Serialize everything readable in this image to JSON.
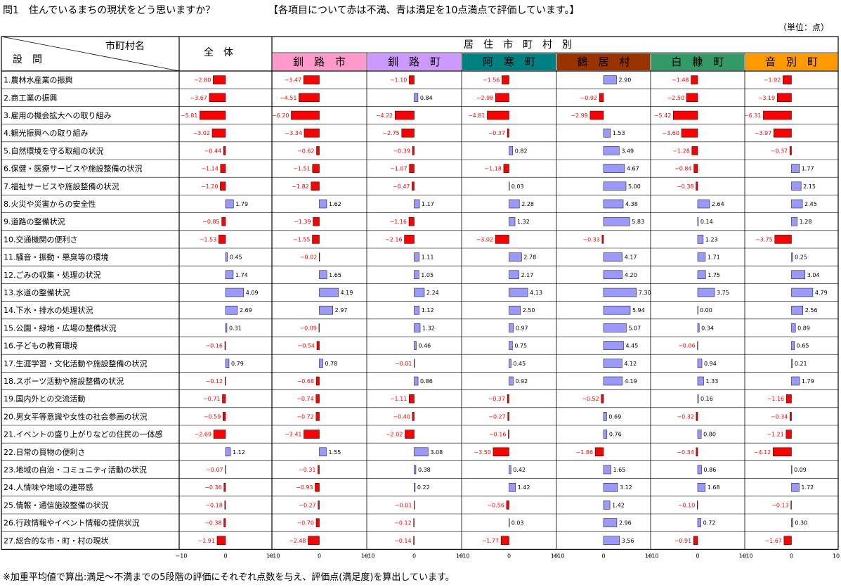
{
  "title": "問1　住んでいるまちの現状をどう思いますか？",
  "note": "【各項目について赤は不満、青は満足を10点満点で評価しています。】",
  "unit": "（単位：点）",
  "footnote": "※加重平均値で算出:満足～不満までの5段階の評価にそれぞれ点数を与え、評価点(満足度)を算出しています。",
  "header": {
    "municipality_label": "市町村名",
    "question_label": "設　問",
    "total_label": "全　体",
    "by_residence_label": "居　住　市　町　村　別"
  },
  "colors": {
    "negative": "#ff0000",
    "positive": "#9999ff",
    "bar_border": "#000000"
  },
  "chart_data": {
    "type": "bar",
    "orientation": "horizontal",
    "xlim": [
      -10,
      10
    ],
    "tick_labels": [
      "−10",
      "0",
      "10"
    ],
    "grid": false,
    "categories": [
      "1.農林水産業の振興",
      "2.商工業の振興",
      "3.雇用の機会拡大への取り組み",
      "4.観光振興への取り組み",
      "5.自然環境を守る取組の状況",
      "6.保健・医療サービスや施設整備の状況",
      "7.福祉サービスや施設整備の状況",
      "8.火災や災害からの安全性",
      "9.道路の整備状況",
      "10.交通機関の便利さ",
      "11.騒音・振動・悪臭等の環境",
      "12.ごみの収集・処理の状況",
      "13.水道の整備状況",
      "14.下水・排水の処理状況",
      "15.公園・緑地・広場の整備状況",
      "16.子どもの教育環境",
      "17.生涯学習・文化活動や施設整備の状況",
      "18.スポーツ活動や施設整備の状況",
      "19.国内外との交流活動",
      "20.男女平等意識や女性の社会参画の状況",
      "21.イベントの盛り上がりなどの住民の一体感",
      "22.日常の買物の便利さ",
      "23.地域の自治・コミュニティ活動の状況",
      "24.人情味や地域の連帯感",
      "25.情報・通信施設整備の状況",
      "26.行政情報やイベント情報の提供状況",
      "27.総合的な市・町・村の現状"
    ],
    "series": [
      {
        "name": "全　体",
        "header_color": "#ffffff",
        "values": [
          -2.8,
          -3.67,
          -5.81,
          -3.02,
          -0.44,
          -1.14,
          -1.2,
          1.79,
          -0.85,
          -1.53,
          0.45,
          1.74,
          4.09,
          2.69,
          0.31,
          -0.16,
          0.79,
          -0.12,
          -0.71,
          -0.59,
          -2.69,
          1.12,
          -0.07,
          -0.36,
          -0.18,
          -0.38,
          -1.91
        ]
      },
      {
        "name": "釧　路　市",
        "header_color": "#ff99cc",
        "values": [
          -3.47,
          -4.51,
          -6.2,
          -3.34,
          -0.62,
          -1.51,
          -1.82,
          1.62,
          -1.39,
          -1.55,
          -0.02,
          1.65,
          4.19,
          2.97,
          -0.09,
          -0.54,
          0.78,
          -0.68,
          -0.74,
          -0.72,
          -3.41,
          1.55,
          -0.31,
          -0.93,
          -0.27,
          -0.7,
          -2.48
        ]
      },
      {
        "name": "釧　路　町",
        "header_color": "#cc99ff",
        "values": [
          -1.1,
          0.84,
          -4.22,
          -2.75,
          -0.39,
          -1.07,
          -0.47,
          1.17,
          -1.16,
          -2.16,
          1.11,
          1.05,
          2.24,
          1.12,
          1.32,
          0.46,
          -0.01,
          0.86,
          -1.11,
          -0.4,
          -2.02,
          3.08,
          0.38,
          0.22,
          -0.01,
          -0.12,
          -0.14
        ]
      },
      {
        "name": "阿　寒　町",
        "header_color": "#008080",
        "values": [
          -1.56,
          -2.98,
          -4.81,
          -0.37,
          0.82,
          -1.18,
          0.03,
          2.28,
          1.32,
          -3.02,
          2.78,
          2.17,
          4.13,
          2.5,
          0.97,
          0.75,
          0.45,
          0.92,
          -0.37,
          -0.27,
          -0.16,
          -3.5,
          0.42,
          1.42,
          -0.56,
          0.03,
          -1.77
        ]
      },
      {
        "name": "鶴　居　村",
        "header_color": "#993300",
        "values": [
          2.9,
          -0.92,
          -2.99,
          1.53,
          3.49,
          4.67,
          5.0,
          4.38,
          5.83,
          -0.33,
          4.17,
          4.2,
          7.3,
          5.94,
          5.07,
          4.45,
          4.12,
          4.19,
          -0.52,
          0.69,
          0.76,
          -1.86,
          1.65,
          3.12,
          1.42,
          2.96,
          3.56
        ]
      },
      {
        "name": "白　糠　町",
        "header_color": "#339966",
        "values": [
          -1.48,
          -2.5,
          -5.42,
          -3.6,
          -1.28,
          -0.84,
          -0.38,
          2.64,
          0.14,
          1.23,
          1.71,
          1.75,
          3.75,
          0.0,
          0.34,
          -0.06,
          0.94,
          1.33,
          0.16,
          -0.32,
          0.8,
          -0.34,
          0.86,
          1.68,
          -0.1,
          0.72,
          -0.91
        ]
      },
      {
        "name": "音　別　町",
        "header_color": "#ff9900",
        "values": [
          -1.92,
          -3.19,
          -6.31,
          -3.97,
          -0.37,
          1.77,
          2.15,
          2.45,
          1.28,
          -3.75,
          0.25,
          3.04,
          4.79,
          2.56,
          0.89,
          0.65,
          0.21,
          1.79,
          -1.16,
          -0.34,
          -1.21,
          -4.12,
          0.09,
          1.72,
          -0.13,
          0.3,
          -1.67
        ]
      }
    ]
  }
}
